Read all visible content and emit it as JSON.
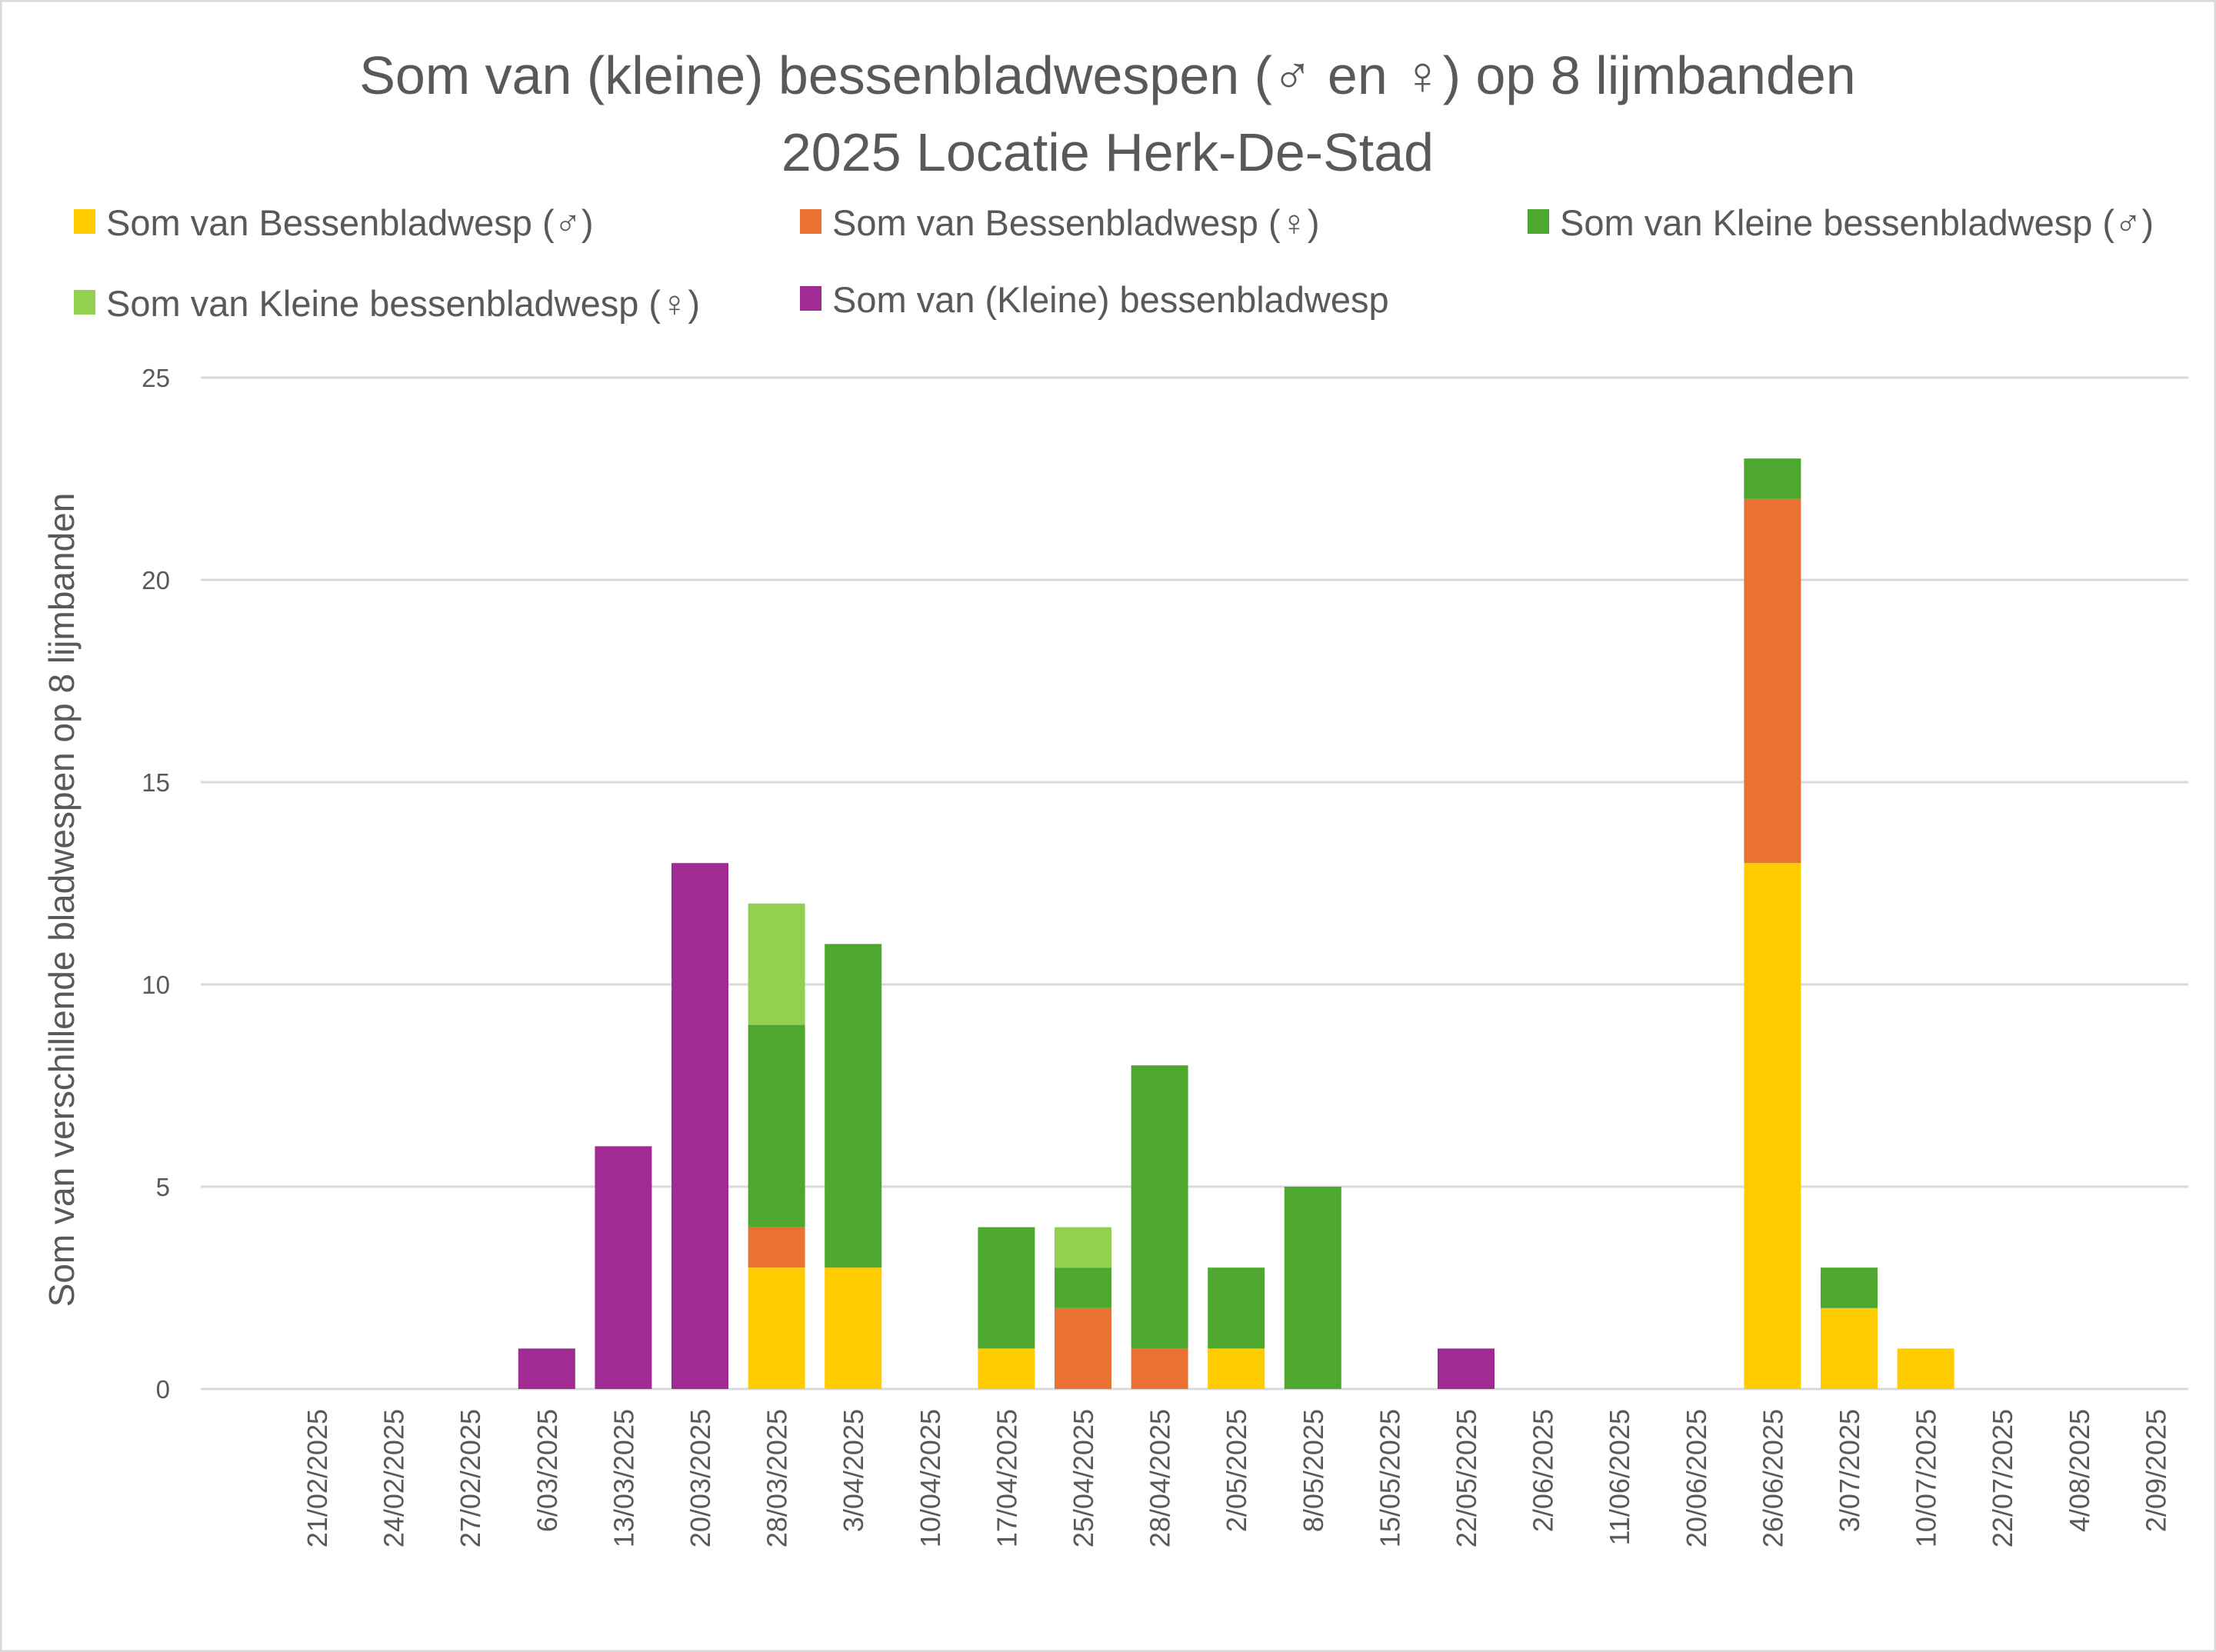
{
  "chart_data": {
    "type": "bar",
    "stacked": true,
    "title": [
      "Som van (kleine) bessenbladwespen (♂ en ♀) op 8 lijmbanden",
      "2025 Locatie Herk-De-Stad"
    ],
    "xlabel": "",
    "ylabel": "Som van  verschillende bladwespen op 8 lijmbanden",
    "ylim": [
      0,
      25
    ],
    "yticks": [
      0,
      5,
      10,
      15,
      20,
      25
    ],
    "grid": true,
    "legend_position": "top",
    "categories": [
      "21/02/2025",
      "24/02/2025",
      "27/02/2025",
      "6/03/2025",
      "13/03/2025",
      "20/03/2025",
      "28/03/2025",
      "3/04/2025",
      "10/04/2025",
      "17/04/2025",
      "25/04/2025",
      "28/04/2025",
      "2/05/2025",
      "8/05/2025",
      "15/05/2025",
      "22/05/2025",
      "2/06/2025",
      "11/06/2025",
      "20/06/2025",
      "26/06/2025",
      "3/07/2025",
      "10/07/2025",
      "22/07/2025",
      "4/08/2025",
      "2/09/2025"
    ],
    "series": [
      {
        "name": "Som van Bessenbladwesp (♂)",
        "color": "#FFCC00",
        "values": [
          0,
          0,
          0,
          0,
          0,
          0,
          3,
          3,
          0,
          1,
          0,
          0,
          1,
          0,
          0,
          0,
          0,
          0,
          0,
          13,
          2,
          1,
          0,
          0,
          0
        ]
      },
      {
        "name": "Som van Bessenbladwesp (♀)",
        "color": "#E97132",
        "values": [
          0,
          0,
          0,
          0,
          0,
          0,
          1,
          0,
          0,
          0,
          2,
          1,
          0,
          0,
          0,
          0,
          0,
          0,
          0,
          9,
          0,
          0,
          0,
          0,
          0
        ]
      },
      {
        "name": "Som van Kleine bessenbladwesp (♂)",
        "color": "#4EA72E",
        "values": [
          0,
          0,
          0,
          0,
          0,
          0,
          5,
          8,
          0,
          3,
          1,
          7,
          2,
          5,
          0,
          0,
          0,
          0,
          0,
          1,
          1,
          0,
          0,
          0,
          0
        ]
      },
      {
        "name": "Som van Kleine bessenbladwesp (♀)",
        "color": "#92D050",
        "values": [
          0,
          0,
          0,
          0,
          0,
          0,
          3,
          0,
          0,
          0,
          1,
          0,
          0,
          0,
          0,
          0,
          0,
          0,
          0,
          0,
          0,
          0,
          0,
          0,
          0
        ]
      },
      {
        "name": "Som van (Kleine) bessenbladwesp",
        "color": "#A02B93",
        "values": [
          0,
          0,
          0,
          1,
          6,
          13,
          0,
          0,
          0,
          0,
          0,
          0,
          0,
          0,
          0,
          1,
          0,
          0,
          0,
          0,
          0,
          0,
          0,
          0,
          0
        ]
      }
    ]
  }
}
